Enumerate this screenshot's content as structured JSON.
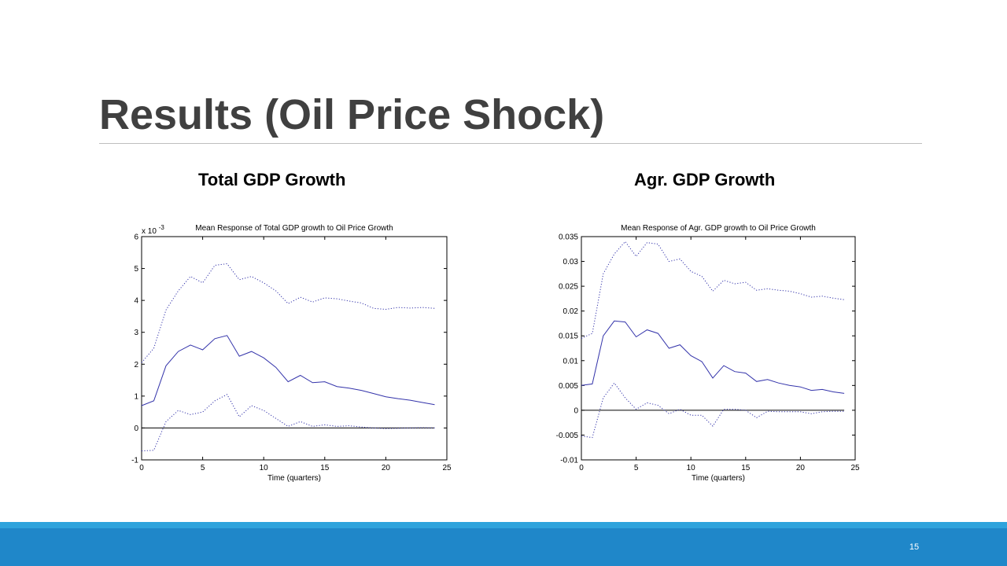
{
  "slide": {
    "title": "Results (Oil Price Shock)",
    "page_number": "15",
    "colors": {
      "title": "#404040",
      "footer_dark": "#1f87c9",
      "footer_light": "#2ea3dc",
      "series": "#3333aa"
    }
  },
  "charts": {
    "left_heading": "Total GDP Growth",
    "right_heading": "Agr. GDP Growth"
  },
  "chart_data": [
    {
      "type": "line",
      "title": "Mean Response of Total GDP growth to Oil Price Growth",
      "xlabel": "Time (quarters)",
      "ylabel": "",
      "y_scale_note": "x 10",
      "y_scale_exp": "-3",
      "xlim": [
        0,
        25
      ],
      "ylim": [
        -1,
        6
      ],
      "xticks": [
        0,
        5,
        10,
        15,
        20,
        25
      ],
      "yticks": [
        -1,
        0,
        1,
        2,
        3,
        4,
        5,
        6
      ],
      "x": [
        0,
        1,
        2,
        3,
        4,
        5,
        6,
        7,
        8,
        9,
        10,
        11,
        12,
        13,
        14,
        15,
        16,
        17,
        18,
        19,
        20,
        21,
        22,
        23,
        24
      ],
      "series": [
        {
          "style": "solid",
          "values": [
            0.7,
            0.85,
            1.95,
            2.4,
            2.6,
            2.45,
            2.8,
            2.9,
            2.25,
            2.4,
            2.2,
            1.9,
            1.45,
            1.65,
            1.42,
            1.45,
            1.3,
            1.25,
            1.18,
            1.08,
            0.98,
            0.92,
            0.87,
            0.8,
            0.73
          ]
        },
        {
          "style": "dotted",
          "values": [
            2.05,
            2.5,
            3.7,
            4.3,
            4.75,
            4.55,
            5.1,
            5.15,
            4.65,
            4.75,
            4.55,
            4.3,
            3.9,
            4.1,
            3.95,
            4.08,
            4.05,
            3.98,
            3.92,
            3.75,
            3.72,
            3.78,
            3.76,
            3.78,
            3.75
          ]
        },
        {
          "style": "dotted",
          "values": [
            -0.72,
            -0.7,
            0.2,
            0.55,
            0.42,
            0.5,
            0.85,
            1.05,
            0.35,
            0.7,
            0.55,
            0.3,
            0.05,
            0.2,
            0.05,
            0.1,
            0.05,
            0.07,
            0.03,
            0.0,
            -0.02,
            -0.01,
            0.0,
            0.01,
            0.0
          ]
        }
      ],
      "zero_line": true
    },
    {
      "type": "line",
      "title": "Mean Response of Agr. GDP growth to Oil Price Growth",
      "xlabel": "Time (quarters)",
      "ylabel": "",
      "xlim": [
        0,
        25
      ],
      "ylim": [
        -0.01,
        0.035
      ],
      "xticks": [
        0,
        5,
        10,
        15,
        20,
        25
      ],
      "yticks": [
        -0.01,
        -0.005,
        0,
        0.005,
        0.01,
        0.015,
        0.02,
        0.025,
        0.03,
        0.035
      ],
      "ytick_labels": [
        "-0.01",
        "-0.005",
        "0",
        "0.005",
        "0.01",
        "0.015",
        "0.02",
        "0.025",
        "0.03",
        "0.035"
      ],
      "x": [
        0,
        1,
        2,
        3,
        4,
        5,
        6,
        7,
        8,
        9,
        10,
        11,
        12,
        13,
        14,
        15,
        16,
        17,
        18,
        19,
        20,
        21,
        22,
        23,
        24
      ],
      "series": [
        {
          "style": "solid",
          "values": [
            0.005,
            0.0053,
            0.015,
            0.018,
            0.0178,
            0.0148,
            0.0162,
            0.0155,
            0.0125,
            0.0132,
            0.011,
            0.0098,
            0.0065,
            0.009,
            0.0078,
            0.0075,
            0.0058,
            0.0062,
            0.0055,
            0.005,
            0.0047,
            0.004,
            0.0042,
            0.0037,
            0.0034
          ]
        },
        {
          "style": "dotted",
          "values": [
            0.0145,
            0.0155,
            0.0275,
            0.0315,
            0.034,
            0.031,
            0.0338,
            0.0335,
            0.03,
            0.0305,
            0.028,
            0.027,
            0.024,
            0.0262,
            0.0255,
            0.0258,
            0.0242,
            0.0245,
            0.0242,
            0.024,
            0.0235,
            0.0228,
            0.023,
            0.0226,
            0.0223
          ]
        },
        {
          "style": "dotted",
          "values": [
            -0.0052,
            -0.0055,
            0.0025,
            0.0055,
            0.0025,
            0.0002,
            0.0015,
            0.001,
            -0.0007,
            0.0002,
            -0.001,
            -0.001,
            -0.0032,
            0.0002,
            0.0002,
            0.0,
            -0.0015,
            -0.0002,
            -0.0003,
            -0.0003,
            -0.0003,
            -0.0007,
            -0.0003,
            -0.0002,
            -0.0002
          ]
        }
      ],
      "zero_line": true
    }
  ]
}
